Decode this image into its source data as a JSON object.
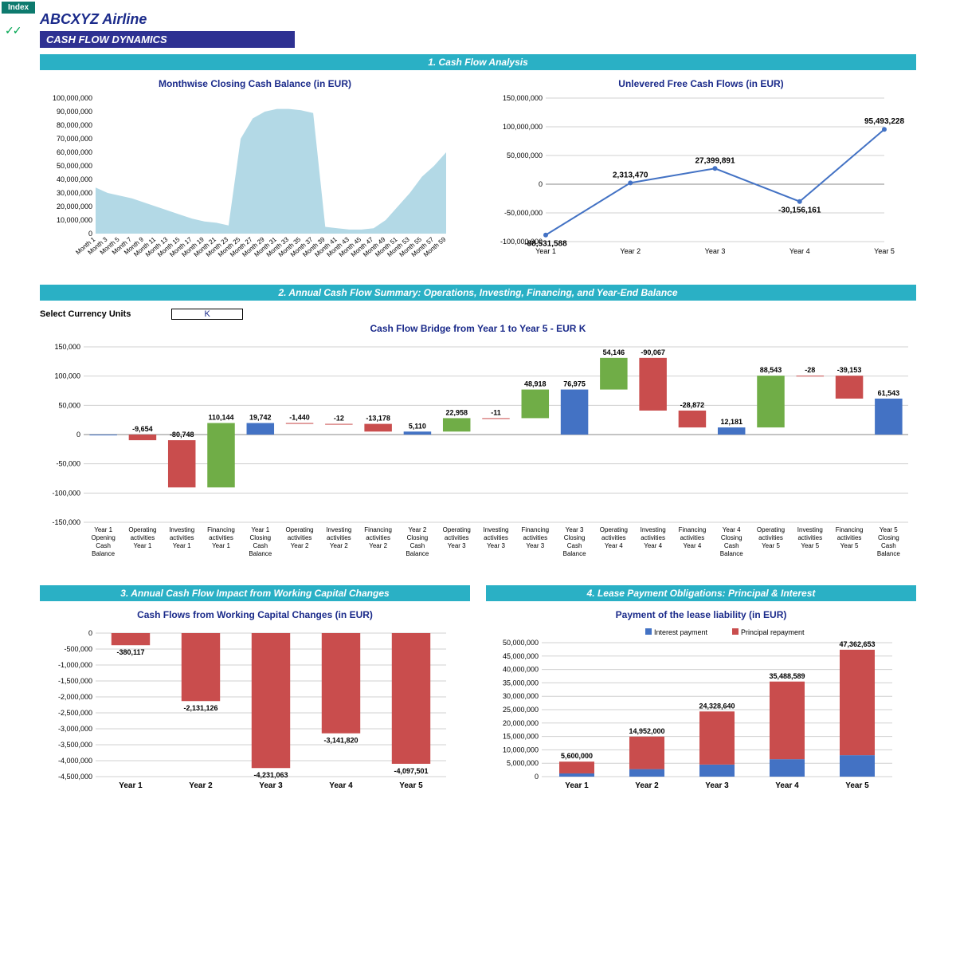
{
  "colors": {
    "index_bg": "#0d7a6e",
    "company": "#1a2a8a",
    "subtitle_bg": "#2e3192",
    "section_bg": "#2ab0c5",
    "chart_title": "#1a2a8a",
    "area_fill": "#b3d9e6",
    "line": "#4372c4",
    "blue_bar": "#4372c4",
    "red_bar": "#c94d4d",
    "green_bar": "#70ad47",
    "grid": "#d0d0d0"
  },
  "index_label": "Index",
  "checks": "✓✓",
  "company": "ABCXYZ Airline",
  "subtitle": "CASH FLOW DYNAMICS",
  "section1": {
    "title": "1. Cash Flow Analysis",
    "chart_a": {
      "title": "Monthwise Closing Cash Balance (in EUR)",
      "type": "area",
      "ylim": [
        0,
        100000000
      ],
      "ytick_step": 10000000,
      "y_labels": [
        "0",
        "10,000,000",
        "20,000,000",
        "30,000,000",
        "40,000,000",
        "50,000,000",
        "60,000,000",
        "70,000,000",
        "80,000,000",
        "90,000,000",
        "100,000,000"
      ],
      "x_categories": [
        "Month 1",
        "Month 3",
        "Month 5",
        "Month 7",
        "Month 9",
        "Month 11",
        "Month 13",
        "Month 15",
        "Month 17",
        "Month 19",
        "Month 21",
        "Month 23",
        "Month 25",
        "Month 27",
        "Month 29",
        "Month 31",
        "Month 33",
        "Month 35",
        "Month 37",
        "Month 39",
        "Month 41",
        "Month 43",
        "Month 45",
        "Month 47",
        "Month 49",
        "Month 51",
        "Month 53",
        "Month 55",
        "Month 57",
        "Month 59"
      ],
      "values": [
        34,
        30,
        28,
        26,
        23,
        20,
        17,
        14,
        11,
        9,
        8,
        6,
        70,
        85,
        90,
        92,
        92,
        91,
        89,
        5,
        4,
        3,
        3,
        4,
        10,
        20,
        30,
        42,
        50,
        60
      ]
    },
    "chart_b": {
      "title": "Unlevered Free Cash Flows (in EUR)",
      "type": "line",
      "ylim": [
        -100000000,
        150000000
      ],
      "yticks": [
        -100000000,
        -50000000,
        0,
        50000000,
        100000000,
        150000000
      ],
      "y_labels": [
        "-100,000,000",
        "-50,000,000",
        "0",
        "50,000,000",
        "100,000,000",
        "150,000,000"
      ],
      "x_categories": [
        "Year 1",
        "Year 2",
        "Year 3",
        "Year 4",
        "Year 5"
      ],
      "values": [
        -88531588,
        2313470,
        27399891,
        -30156161,
        95493228
      ],
      "value_labels": [
        "-88,531,588",
        "2,313,470",
        "27,399,891",
        "-30,156,161",
        "95,493,228"
      ]
    }
  },
  "section2": {
    "title": "2. Annual Cash Flow Summary: Operations, Investing, Financing, and Year-End Balance",
    "select_label": "Select Currency Units",
    "select_value": "K",
    "chart": {
      "title": "Cash Flow Bridge from Year 1 to Year 5 - EUR K",
      "type": "waterfall",
      "ylim": [
        -150000,
        150000
      ],
      "yticks": [
        -150000,
        -100000,
        -50000,
        0,
        50000,
        100000,
        150000
      ],
      "y_labels": [
        "-150,000",
        "-100,000",
        "-50,000",
        "0",
        "50,000",
        "100,000",
        "150,000"
      ],
      "items": [
        {
          "label": "Year 1\nOpening\nCash\nBalance",
          "val": 0,
          "base": 0,
          "color": "#4372c4",
          "text": ""
        },
        {
          "label": "Operating\nactivities\nYear 1",
          "val": -9654,
          "base": 0,
          "color": "#c94d4d",
          "text": "-9,654"
        },
        {
          "label": "Investing\nactivities\nYear 1",
          "val": -80748,
          "base": -9654,
          "color": "#c94d4d",
          "text": "-80,748"
        },
        {
          "label": "Financing\nactivities\nYear 1",
          "val": 110144,
          "base": -90402,
          "color": "#70ad47",
          "text": "110,144"
        },
        {
          "label": "Year 1\nClosing\nCash\nBalance",
          "val": 19742,
          "base": 0,
          "color": "#4372c4",
          "text": "19,742"
        },
        {
          "label": "Operating\nactivities\nYear 2",
          "val": -1440,
          "base": 19742,
          "color": "#c94d4d",
          "text": "-1,440"
        },
        {
          "label": "Investing\nactivities\nYear 2",
          "val": -12,
          "base": 18302,
          "color": "#c94d4d",
          "text": "-12"
        },
        {
          "label": "Financing\nactivities\nYear 2",
          "val": -13178,
          "base": 18290,
          "color": "#c94d4d",
          "text": "-13,178"
        },
        {
          "label": "Year 2\nClosing\nCash\nBalance",
          "val": 5110,
          "base": 0,
          "color": "#4372c4",
          "text": "5,110"
        },
        {
          "label": "Operating\nactivities\nYear 3",
          "val": 22958,
          "base": 5110,
          "color": "#70ad47",
          "text": "22,958"
        },
        {
          "label": "Investing\nactivities\nYear 3",
          "val": -11,
          "base": 28068,
          "color": "#c94d4d",
          "text": "-11"
        },
        {
          "label": "Financing\nactivities\nYear 3",
          "val": 48918,
          "base": 28057,
          "color": "#70ad47",
          "text": "48,918"
        },
        {
          "label": "Year 3\nClosing\nCash\nBalance",
          "val": 76975,
          "base": 0,
          "color": "#4372c4",
          "text": "76,975"
        },
        {
          "label": "Operating\nactivities\nYear 4",
          "val": 54146,
          "base": 76975,
          "color": "#70ad47",
          "text": "54,146"
        },
        {
          "label": "Investing\nactivities\nYear 4",
          "val": -90067,
          "base": 131121,
          "color": "#c94d4d",
          "text": "-90,067"
        },
        {
          "label": "Financing\nactivities\nYear 4",
          "val": -28872,
          "base": 41054,
          "color": "#c94d4d",
          "text": "-28,872"
        },
        {
          "label": "Year 4\nClosing\nCash\nBalance",
          "val": 12181,
          "base": 0,
          "color": "#4372c4",
          "text": "12,181"
        },
        {
          "label": "Operating\nactivities\nYear 5",
          "val": 88543,
          "base": 12181,
          "color": "#70ad47",
          "text": "88,543"
        },
        {
          "label": "Investing\nactivities\nYear 5",
          "val": -28,
          "base": 100724,
          "color": "#c94d4d",
          "text": "-28"
        },
        {
          "label": "Financing\nactivities\nYear 5",
          "val": -39153,
          "base": 100696,
          "color": "#c94d4d",
          "text": "-39,153"
        },
        {
          "label": "Year 5\nClosing\nCash\nBalance",
          "val": 61543,
          "base": 0,
          "color": "#4372c4",
          "text": "61,543"
        }
      ]
    }
  },
  "section3": {
    "title": "3. Annual Cash Flow Impact from Working Capital Changes",
    "chart": {
      "title": "Cash Flows from Working Capital Changes (in EUR)",
      "type": "bar",
      "ylim": [
        -4500000,
        0
      ],
      "ytick_step": 500000,
      "y_labels": [
        "-4,500,000",
        "-4,000,000",
        "-3,500,000",
        "-3,000,000",
        "-2,500,000",
        "-2,000,000",
        "-1,500,000",
        "-1,000,000",
        "-500,000",
        "0"
      ],
      "x_categories": [
        "Year 1",
        "Year 2",
        "Year 3",
        "Year 4",
        "Year 5"
      ],
      "values": [
        -380117,
        -2131126,
        -4231063,
        -3141820,
        -4097501
      ],
      "value_labels": [
        "-380,117",
        "-2,131,126",
        "-4,231,063",
        "-3,141,820",
        "-4,097,501"
      ],
      "bar_color": "#c94d4d"
    }
  },
  "section4": {
    "title": "4. Lease Payment Obligations: Principal & Interest",
    "chart": {
      "title": "Payment of  the lease liability (in EUR)",
      "type": "stacked-bar",
      "ylim": [
        0,
        50000000
      ],
      "ytick_step": 5000000,
      "y_labels": [
        "0",
        "5,000,000",
        "10,000,000",
        "15,000,000",
        "20,000,000",
        "25,000,000",
        "30,000,000",
        "35,000,000",
        "40,000,000",
        "45,000,000",
        "50,000,000"
      ],
      "x_categories": [
        "Year 1",
        "Year 2",
        "Year 3",
        "Year 4",
        "Year 5"
      ],
      "legend": [
        {
          "label": "Interest payment",
          "color": "#4372c4"
        },
        {
          "label": "Principal repayment",
          "color": "#c94d4d"
        }
      ],
      "series_interest": [
        1200000,
        2800000,
        4500000,
        6500000,
        8000000
      ],
      "series_principal": [
        4400000,
        12152000,
        19828640,
        28988589,
        39362653
      ],
      "totals": [
        5600000,
        14952000,
        24328640,
        35488589,
        47362653
      ],
      "total_labels": [
        "5,600,000",
        "14,952,000",
        "24,328,640",
        "35,488,589",
        "47,362,653"
      ]
    }
  }
}
